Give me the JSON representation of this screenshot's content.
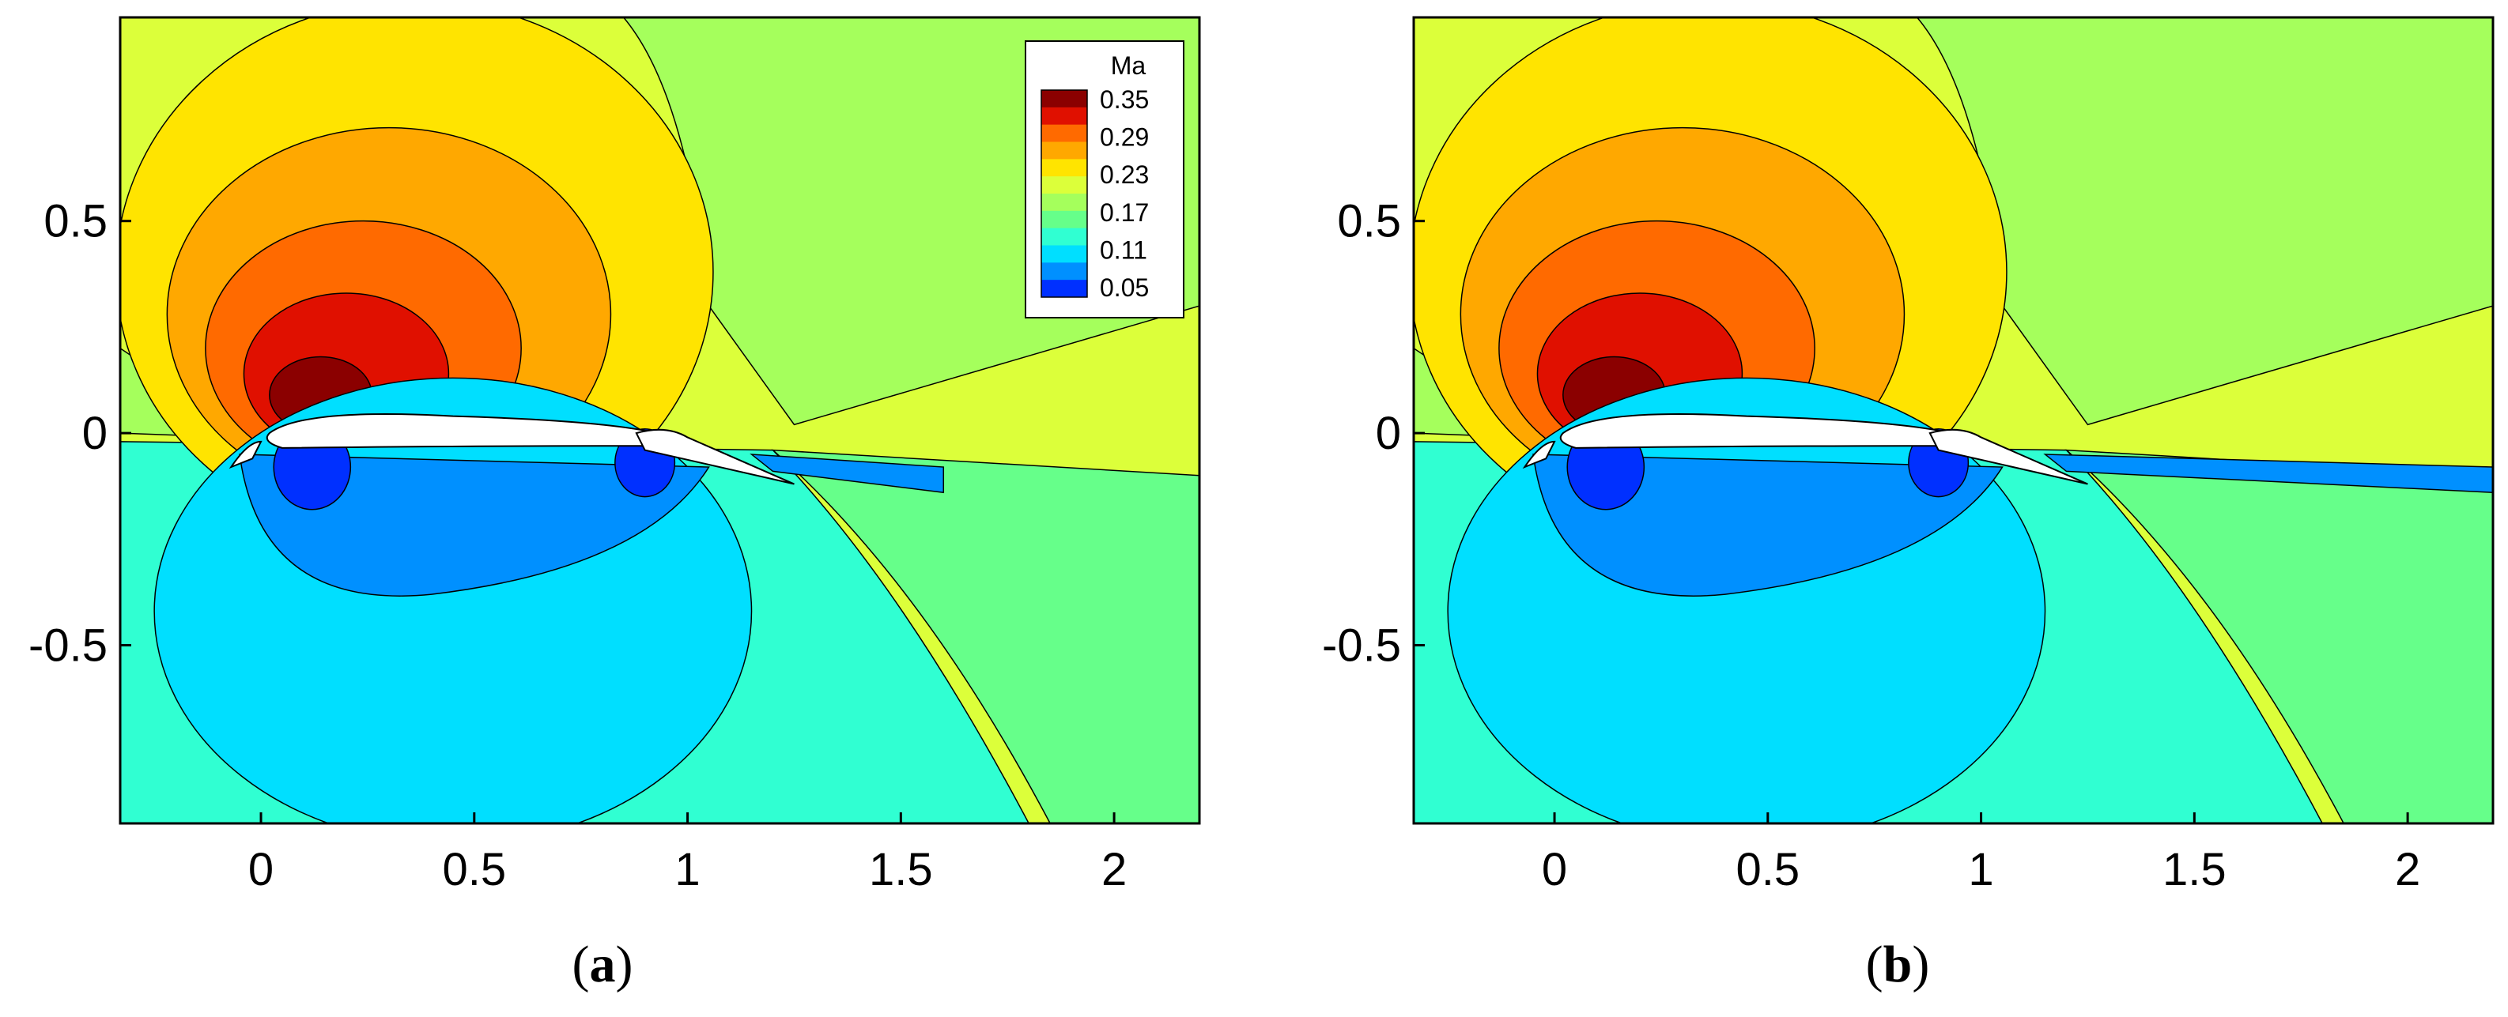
{
  "figure": {
    "panel_labels": [
      {
        "paren_open": "(",
        "letter": "a",
        "paren_close": ")"
      },
      {
        "paren_open": "(",
        "letter": "b",
        "paren_close": ")"
      }
    ]
  },
  "chart_data": [
    {
      "type": "heatmap",
      "id": "a",
      "variable": "Ma",
      "xlim": [
        -0.33,
        2.2
      ],
      "ylim": [
        -0.92,
        0.98
      ],
      "xticks": [
        0,
        0.5,
        1,
        1.5,
        2
      ],
      "yticks": [
        -0.5,
        0,
        0.5
      ],
      "xtick_labels": [
        "0",
        "0.5",
        "1",
        "1.5",
        "2"
      ],
      "ytick_labels": [
        "-0.5",
        "0",
        "0.5"
      ],
      "grid": false,
      "legend": {
        "title": "Ma",
        "placement": "top-right",
        "labels": [
          "0.35",
          "0.29",
          "0.23",
          "0.17",
          "0.11",
          "0.05"
        ],
        "levels": [
          0.05,
          0.08,
          0.11,
          0.14,
          0.17,
          0.2,
          0.23,
          0.26,
          0.29,
          0.32,
          0.35
        ]
      },
      "colors": [
        "#00008a",
        "#0030ff",
        "#0090ff",
        "#00dfff",
        "#30ffd2",
        "#66ff8a",
        "#a5ff5c",
        "#dcff3a",
        "#ffe400",
        "#ffa800",
        "#ff6a00",
        "#e01000",
        "#8b0000"
      ],
      "wake": "short"
    },
    {
      "type": "heatmap",
      "id": "b",
      "variable": "Ma",
      "xlim": [
        -0.33,
        2.2
      ],
      "ylim": [
        -0.92,
        0.98
      ],
      "xticks": [
        0,
        0.5,
        1,
        1.5,
        2
      ],
      "yticks": [
        -0.5,
        0,
        0.5
      ],
      "xtick_labels": [
        "0",
        "0.5",
        "1",
        "1.5",
        "2"
      ],
      "ytick_labels": [
        "-0.5",
        "0",
        "0.5"
      ],
      "grid": false,
      "colors": [
        "#00008a",
        "#0030ff",
        "#0090ff",
        "#00dfff",
        "#30ffd2",
        "#66ff8a",
        "#a5ff5c",
        "#dcff3a",
        "#ffe400",
        "#ffa800",
        "#ff6a00",
        "#e01000",
        "#8b0000"
      ],
      "wake": "long"
    }
  ]
}
